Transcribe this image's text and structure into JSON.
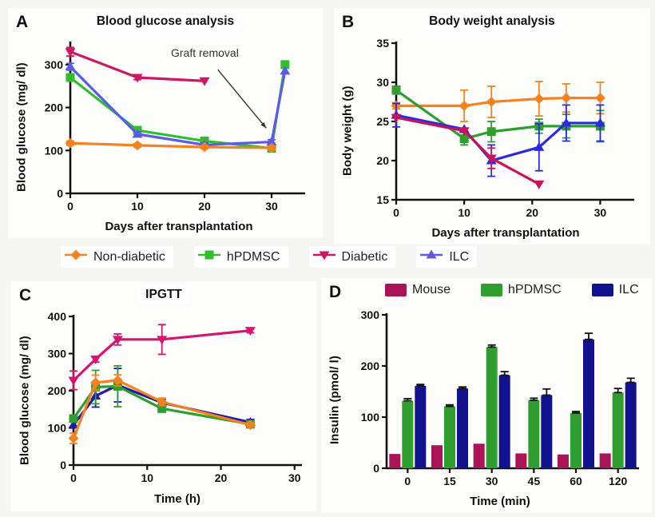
{
  "panels": {
    "a": {
      "label": "A",
      "title": "Blood glucose analysis",
      "ylabel": "Blood glucose (mg/ dl)",
      "xlabel": "Days after transplantation",
      "annotation_text": "Graft removal"
    },
    "b": {
      "label": "B",
      "title": "Body weight analysis",
      "ylabel": "Body weight (g)",
      "xlabel": "Days after transplantation"
    },
    "c": {
      "label": "C",
      "title": "IPGTT",
      "ylabel": "Blood glucose (mg/ dl)",
      "xlabel": "Time (h)"
    },
    "d": {
      "label": "D",
      "ylabel": "Insulin (pmol/ l)",
      "xlabel": "Time (min)"
    }
  },
  "legend_main": [
    {
      "label": "Non-diabetic",
      "color": "#F5821F",
      "marker": "diamond"
    },
    {
      "label": "hPDMSC",
      "color": "#2EBE2E",
      "marker": "square"
    },
    {
      "label": "Diabetic",
      "color": "#CE1663",
      "marker": "triangle-down"
    },
    {
      "label": "ILC",
      "color": "#5B5BE8",
      "marker": "triangle-up"
    }
  ],
  "legend_d": [
    {
      "label": "Mouse",
      "color": "#A81456"
    },
    {
      "label": "hPDMSC",
      "color": "#2E9E2E"
    },
    {
      "label": "ILC",
      "color": "#12128F"
    }
  ],
  "chart_data": [
    {
      "id": "a",
      "type": "line",
      "title": "Blood glucose analysis",
      "xlabel": "Days after transplantation",
      "ylabel": "Blood glucose (mg/ dl)",
      "xlim": [
        0,
        35
      ],
      "ylim": [
        0,
        350
      ],
      "xticks": [
        0,
        10,
        20,
        30
      ],
      "yticks": [
        0,
        100,
        200,
        300
      ],
      "annotation": {
        "text": "Graft removal",
        "text_at": [
          15,
          318
        ],
        "arrow": [
          [
            22,
            288
          ],
          [
            29.2,
            152
          ]
        ]
      },
      "series": [
        {
          "name": "Diabetic",
          "color": "#CE1663",
          "marker": "triangle-down",
          "x": [
            0,
            10,
            20
          ],
          "y": [
            330,
            270,
            262
          ],
          "err": [
            10,
            5,
            0
          ]
        },
        {
          "name": "hPDMSC",
          "color": "#2EBE2E",
          "marker": "square",
          "x": [
            0,
            10,
            20,
            30,
            32
          ],
          "y": [
            270,
            147,
            122,
            105,
            300
          ],
          "err": [
            6,
            6,
            5,
            5,
            0
          ]
        },
        {
          "name": "ILC",
          "color": "#5B5BE8",
          "marker": "triangle-up",
          "x": [
            0,
            10,
            20,
            30,
            32
          ],
          "y": [
            295,
            138,
            113,
            120,
            285
          ],
          "err": [
            8,
            6,
            5,
            5,
            0
          ]
        },
        {
          "name": "Non-diabetic",
          "color": "#F5821F",
          "marker": "diamond",
          "x": [
            0,
            10,
            20,
            30
          ],
          "y": [
            117,
            112,
            108,
            106
          ],
          "err": [
            5,
            4,
            4,
            4
          ]
        }
      ]
    },
    {
      "id": "b",
      "type": "line",
      "title": "Body weight analysis",
      "xlabel": "Days after transplantation",
      "ylabel": "Body weight (g)",
      "xlim": [
        0,
        35
      ],
      "ylim": [
        15,
        35
      ],
      "xticks": [
        0,
        10,
        20,
        30
      ],
      "yticks": [
        15,
        20,
        25,
        30,
        35
      ],
      "series": [
        {
          "name": "Non-diabetic",
          "color": "#F5821F",
          "marker": "diamond",
          "x": [
            0,
            10,
            14,
            21,
            25,
            30
          ],
          "y": [
            27,
            27,
            27.5,
            27.9,
            28,
            28
          ],
          "err": [
            0.4,
            2,
            2,
            2.2,
            1.8,
            2
          ]
        },
        {
          "name": "hPDMSC",
          "color": "#2E9E2E",
          "marker": "square",
          "x": [
            0,
            10,
            14,
            21,
            25,
            30
          ],
          "y": [
            29,
            22.8,
            23.7,
            24.4,
            24.4,
            24.4
          ],
          "err": [
            0.5,
            0.8,
            1.3,
            0.9,
            1.5,
            2
          ]
        },
        {
          "name": "ILC",
          "color": "#2B2BDD",
          "marker": "triangle-up",
          "x": [
            0,
            10,
            14,
            21,
            25,
            30
          ],
          "y": [
            25.8,
            24,
            20,
            21.7,
            24.8,
            24.8
          ],
          "err": [
            1.5,
            0,
            2,
            3,
            2.3,
            2.3
          ]
        },
        {
          "name": "Diabetic",
          "color": "#CC1157",
          "marker": "triangle-down",
          "x": [
            0,
            10,
            14,
            21
          ],
          "y": [
            25.5,
            23.8,
            20.3,
            17
          ],
          "err": [
            0,
            0,
            1.3,
            0
          ]
        }
      ]
    },
    {
      "id": "c",
      "type": "line",
      "title": "IPGTT",
      "xlabel": "Time (h)",
      "ylabel": "Blood glucose (mg/ dl)",
      "xlim": [
        0,
        31
      ],
      "ylim": [
        0,
        400
      ],
      "xticks": [
        0,
        10,
        20,
        30
      ],
      "yticks": [
        0,
        100,
        200,
        300,
        400
      ],
      "series": [
        {
          "name": "Diabetic",
          "color": "#D6156E",
          "marker": "triangle-down",
          "x": [
            0,
            3,
            6,
            12,
            24
          ],
          "y": [
            228,
            285,
            338,
            338,
            362
          ],
          "err": [
            25,
            8,
            15,
            40,
            6
          ]
        },
        {
          "name": "ILC",
          "color": "#1B1BA8",
          "marker": "triangle-up",
          "x": [
            0,
            3,
            6,
            12,
            24
          ],
          "y": [
            108,
            186,
            215,
            168,
            115
          ],
          "err": [
            8,
            30,
            45,
            8,
            8
          ]
        },
        {
          "name": "hPDMSC",
          "color": "#2E9E2E",
          "marker": "square",
          "x": [
            0,
            3,
            6,
            12,
            24
          ],
          "y": [
            125,
            210,
            212,
            152,
            110
          ],
          "err": [
            6,
            45,
            55,
            6,
            6
          ]
        },
        {
          "name": "Non-diabetic",
          "color": "#F5821F",
          "marker": "diamond",
          "x": [
            0,
            3,
            6,
            12,
            24
          ],
          "y": [
            72,
            222,
            228,
            170,
            108
          ],
          "err": [
            14,
            20,
            15,
            10,
            6
          ]
        }
      ]
    },
    {
      "id": "d",
      "type": "bar",
      "xlabel": "Time (min)",
      "ylabel": "Insulin (pmol/ l)",
      "ylim": [
        0,
        300
      ],
      "yticks": [
        0,
        100,
        200,
        300
      ],
      "categories": [
        "0",
        "15",
        "30",
        "45",
        "60",
        "120"
      ],
      "series": [
        {
          "name": "Mouse",
          "color": "#A81456",
          "values": [
            28,
            45,
            48,
            29,
            27,
            29
          ],
          "err": [
            0,
            0,
            0,
            0,
            0,
            0
          ]
        },
        {
          "name": "hPDMSC",
          "color": "#2E9E2E",
          "values": [
            132,
            121,
            237,
            133,
            108,
            148
          ],
          "err": [
            4,
            3,
            4,
            4,
            3,
            8
          ]
        },
        {
          "name": "ILC",
          "color": "#12128F",
          "values": [
            161,
            156,
            182,
            143,
            252,
            168
          ],
          "err": [
            3,
            3,
            7,
            12,
            12,
            8
          ]
        }
      ]
    }
  ]
}
